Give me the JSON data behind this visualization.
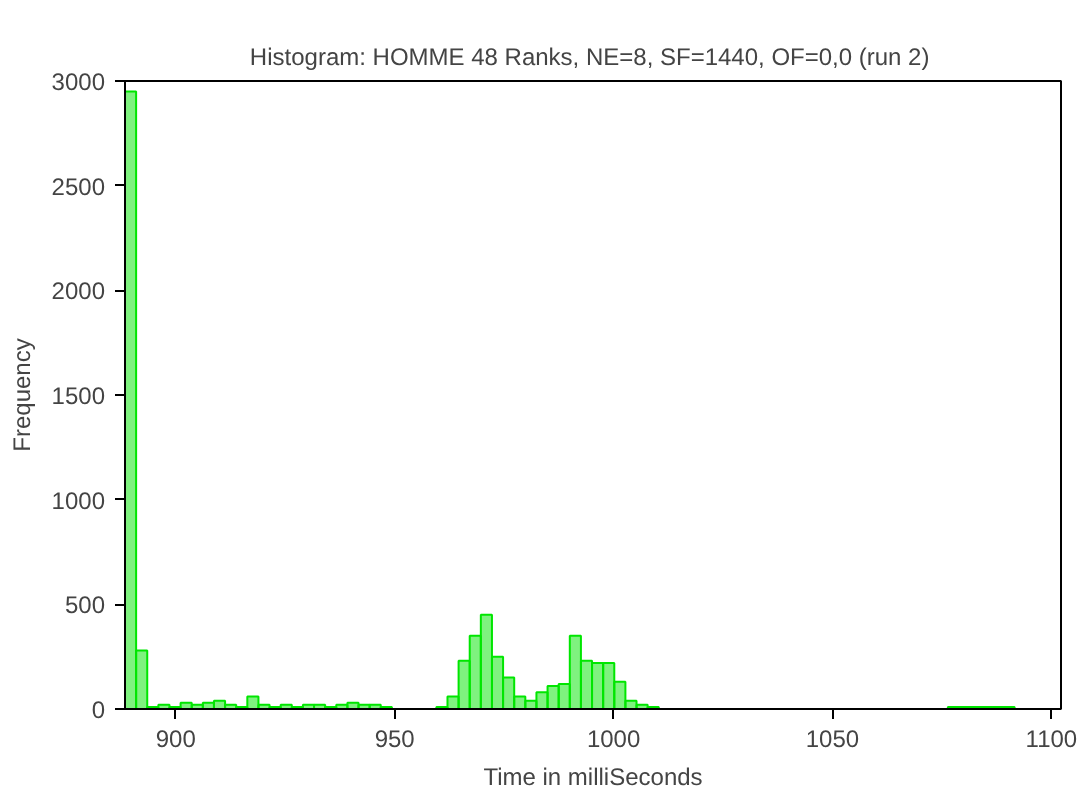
{
  "chart_data": {
    "type": "histogram",
    "title": "Histogram:  HOMME 48 Ranks, NE=8, SF=1440, OF=0,0 (run 2)",
    "xlabel": "Time in milliSeconds",
    "ylabel": "Frequency",
    "bins": [
      888.4,
      890.94,
      893.48,
      896.02,
      898.56,
      901.1,
      903.64,
      906.18,
      908.72,
      911.26,
      913.8,
      916.34,
      918.88,
      921.42,
      923.96,
      926.5,
      929.04,
      931.58,
      934.12,
      936.66,
      939.2,
      941.74,
      944.28,
      946.82,
      949.36,
      951.9,
      954.44,
      956.98,
      959.52,
      962.06,
      964.6,
      967.14,
      969.68,
      972.22,
      974.76,
      977.3,
      979.84,
      982.38,
      984.92,
      987.46,
      990.0,
      992.54,
      995.08,
      997.62,
      1000.16,
      1002.7,
      1005.24,
      1007.78,
      1010.32,
      1012.86,
      1015.4,
      1017.94,
      1020.48,
      1023.02,
      1025.56,
      1028.1,
      1030.64,
      1033.18,
      1035.72,
      1038.26,
      1040.8,
      1043.34,
      1045.88,
      1048.42,
      1050.96,
      1053.5,
      1056.04,
      1058.58,
      1061.12,
      1063.66,
      1066.2,
      1068.74,
      1071.28,
      1073.82,
      1076.36,
      1078.9,
      1081.44,
      1083.98,
      1086.52,
      1089.06,
      1091.6
    ],
    "values": [
      2950,
      280,
      10,
      20,
      10,
      30,
      20,
      30,
      40,
      20,
      10,
      60,
      20,
      10,
      20,
      10,
      20,
      20,
      10,
      20,
      30,
      20,
      20,
      10,
      0,
      0,
      0,
      0,
      10,
      60,
      230,
      350,
      450,
      250,
      150,
      60,
      40,
      80,
      110,
      120,
      350,
      230,
      220,
      220,
      130,
      40,
      20,
      10,
      0,
      0,
      0,
      0,
      0,
      0,
      0,
      0,
      0,
      0,
      0,
      0,
      0,
      0,
      0,
      0,
      0,
      0,
      0,
      0,
      0,
      0,
      0,
      0,
      0,
      0,
      10,
      10,
      10,
      10,
      10,
      10
    ],
    "color": "#00e600",
    "xlim": [
      888.4,
      1102.2
    ],
    "ylim": [
      0,
      3000
    ],
    "xticks": [
      900,
      950,
      1000,
      1050,
      1100
    ],
    "yticks": [
      0,
      500,
      1000,
      1500,
      2000,
      2500,
      3000
    ],
    "grid": false
  }
}
